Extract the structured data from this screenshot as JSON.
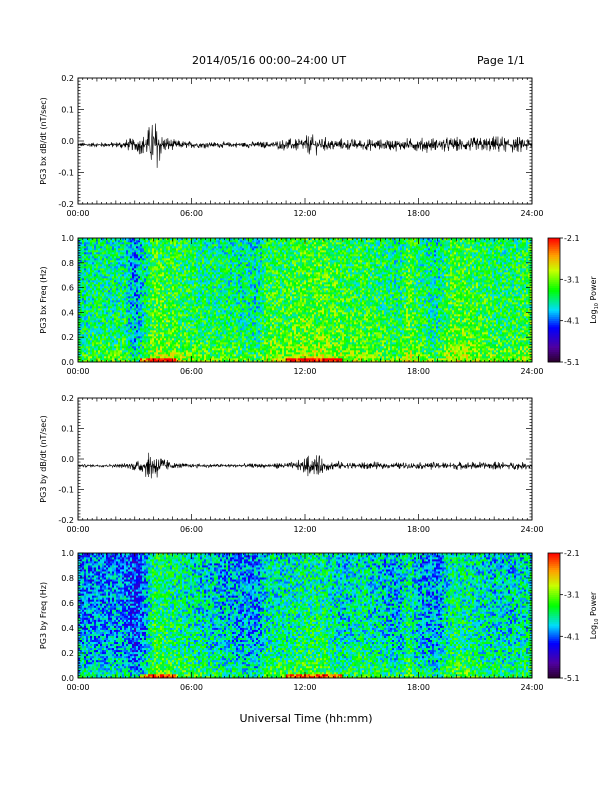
{
  "header": {
    "title": "2014/05/16  00:00–24:00 UT",
    "page": "Page 1/1"
  },
  "footer": {
    "xlabel": "Universal Time (hh:mm)"
  },
  "chart_data": [
    {
      "type": "line",
      "ylabel": "PG3 bx dB/dt (nT/sec)",
      "xlim": [
        0,
        24
      ],
      "ylim": [
        -0.2,
        0.2
      ],
      "x_ticks": [
        "00:00",
        "06:00",
        "12:00",
        "18:00",
        "24:00"
      ],
      "y_ticks": [
        "0.2",
        "0.1",
        "0.0",
        "-0.1",
        "-0.2"
      ],
      "baseline": -0.012,
      "series": [
        {
          "x": [
            0,
            1,
            2,
            3,
            3.5,
            4,
            4.5,
            5,
            6,
            8,
            10,
            11.5,
            12,
            12.5,
            13,
            14,
            16,
            18,
            20,
            22,
            24
          ],
          "amplitude": [
            0.007,
            0.007,
            0.009,
            0.022,
            0.03,
            0.09,
            0.035,
            0.015,
            0.01,
            0.008,
            0.01,
            0.02,
            0.03,
            0.028,
            0.022,
            0.018,
            0.016,
            0.02,
            0.022,
            0.025,
            0.022
          ]
        }
      ]
    },
    {
      "type": "heatmap",
      "ylabel": "PG3 bx Freq (Hz)",
      "xlim": [
        0,
        24
      ],
      "ylim": [
        0,
        1
      ],
      "x_ticks": [
        "00:00",
        "06:00",
        "12:00",
        "18:00",
        "24:00"
      ],
      "y_ticks": [
        "1.0",
        "0.8",
        "0.6",
        "0.4",
        "0.2",
        "0.0"
      ],
      "colorbar": {
        "label": "Log10 Power",
        "range": [
          -5.1,
          -2.1
        ],
        "ticks": [
          "-2.1",
          "-3.1",
          "-4.1",
          "-5.1"
        ]
      },
      "time_profile_x": [
        0,
        1,
        2.5,
        3,
        3.5,
        4,
        5,
        6,
        8,
        9.5,
        10,
        11,
        12,
        13,
        14,
        15,
        16,
        17,
        17.5,
        18,
        19,
        19.5,
        20,
        21,
        22,
        23,
        24
      ],
      "time_profile_log_power": [
        -3.6,
        -3.5,
        -3.5,
        -3.9,
        -3.6,
        -3.2,
        -3.3,
        -3.4,
        -3.5,
        -3.6,
        -3.3,
        -3.3,
        -3.2,
        -3.2,
        -3.3,
        -3.3,
        -3.4,
        -3.5,
        -3.2,
        -3.4,
        -3.6,
        -3.3,
        -3.2,
        -3.3,
        -3.4,
        -3.4,
        -3.3
      ]
    },
    {
      "type": "line",
      "ylabel": "PG3 by dB/dt (nT/sec)",
      "xlim": [
        0,
        24
      ],
      "ylim": [
        -0.2,
        0.2
      ],
      "x_ticks": [
        "00:00",
        "06:00",
        "12:00",
        "18:00",
        "24:00"
      ],
      "y_ticks": [
        "0.2",
        "0.1",
        "0.0",
        "-0.1",
        "-0.2"
      ],
      "baseline": -0.022,
      "series": [
        {
          "x": [
            0,
            1,
            2,
            2.5,
            3,
            3.5,
            4,
            4.5,
            5,
            6,
            8,
            10,
            11.5,
            12,
            12.5,
            13,
            14,
            16,
            18,
            20,
            22,
            24
          ],
          "amplitude": [
            0.004,
            0.004,
            0.005,
            0.008,
            0.018,
            0.028,
            0.06,
            0.03,
            0.01,
            0.006,
            0.006,
            0.007,
            0.012,
            0.025,
            0.04,
            0.02,
            0.012,
            0.01,
            0.01,
            0.012,
            0.012,
            0.01
          ]
        }
      ]
    },
    {
      "type": "heatmap",
      "ylabel": "PG3 by Freq (Hz)",
      "xlim": [
        0,
        24
      ],
      "ylim": [
        0,
        1
      ],
      "x_ticks": [
        "00:00",
        "06:00",
        "12:00",
        "18:00",
        "24:00"
      ],
      "y_ticks": [
        "1.0",
        "0.8",
        "0.6",
        "0.4",
        "0.2",
        "0.0"
      ],
      "colorbar": {
        "label": "Log10 Power",
        "range": [
          -5.1,
          -2.1
        ],
        "ticks": [
          "-2.1",
          "-3.1",
          "-4.1",
          "-5.1"
        ]
      },
      "time_profile_x": [
        0,
        1,
        2.5,
        3,
        3.5,
        4,
        5,
        6,
        8,
        9.5,
        10,
        11,
        12,
        13,
        14,
        15,
        16,
        17,
        17.5,
        18,
        19,
        19.5,
        20,
        21,
        22,
        23,
        24
      ],
      "time_profile_log_power": [
        -3.9,
        -3.9,
        -3.9,
        -4.2,
        -3.9,
        -3.4,
        -3.5,
        -3.6,
        -3.8,
        -3.9,
        -3.6,
        -3.6,
        -3.5,
        -3.5,
        -3.7,
        -3.6,
        -3.7,
        -3.8,
        -3.5,
        -3.8,
        -3.9,
        -3.6,
        -3.5,
        -3.6,
        -3.7,
        -3.7,
        -3.6
      ]
    }
  ]
}
